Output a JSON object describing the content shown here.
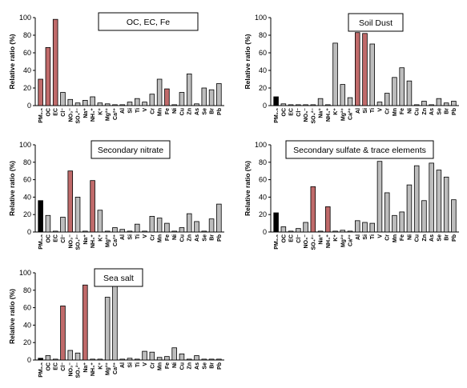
{
  "chart_data": [
    {
      "type": "bar",
      "title": "OC, EC, Fe",
      "ylabel": "Relative ratio (%)",
      "ylim": [
        0,
        100
      ],
      "yticks": [
        0,
        20,
        40,
        60,
        80,
        100
      ],
      "grid": false,
      "categories": [
        "PM₂.₅",
        "OC",
        "EC",
        "Cl⁻",
        "NO₃⁻",
        "SO₄²⁻",
        "Na⁺",
        "NH₄⁺",
        "K⁺",
        "Mg²⁺",
        "Ca²⁺",
        "Al",
        "Si",
        "Ti",
        "V",
        "Cr",
        "Mn",
        "Fe",
        "Ni",
        "Cu",
        "Zn",
        "As",
        "Se",
        "Br",
        "Pb"
      ],
      "values": [
        30,
        66,
        98,
        15,
        7,
        3,
        6,
        10,
        3,
        2,
        1,
        1,
        4,
        8,
        4,
        13,
        30,
        19,
        1,
        15,
        36,
        2,
        20,
        18,
        25
      ],
      "highlight": [
        2,
        2,
        2,
        1,
        1,
        1,
        1,
        1,
        1,
        1,
        1,
        1,
        1,
        1,
        1,
        1,
        1,
        2,
        1,
        1,
        1,
        1,
        1,
        1,
        1
      ]
    },
    {
      "type": "bar",
      "title": "Soil Dust",
      "ylabel": "Relative ratio (%)",
      "ylim": [
        0,
        100
      ],
      "yticks": [
        0,
        20,
        40,
        60,
        80,
        100
      ],
      "grid": false,
      "categories": [
        "PM₂.₅",
        "OC",
        "EC",
        "Cl⁻",
        "NO₃⁻",
        "SO₄²⁻",
        "Na⁺",
        "NH₄⁺",
        "K⁺",
        "Mg²⁺",
        "Ca²⁺",
        "Al",
        "Si",
        "Ti",
        "V",
        "Cr",
        "Mn",
        "Fe",
        "Ni",
        "Cu",
        "Zn",
        "As",
        "Se",
        "Br",
        "Pb"
      ],
      "values": [
        10,
        2,
        1,
        1,
        1,
        1,
        8,
        1,
        71,
        24,
        9,
        83,
        82,
        70,
        4,
        14,
        32,
        43,
        28,
        1,
        5,
        1,
        8,
        3,
        5
      ],
      "highlight": [
        0,
        1,
        1,
        1,
        1,
        1,
        1,
        1,
        1,
        1,
        1,
        2,
        2,
        1,
        1,
        1,
        1,
        1,
        1,
        1,
        1,
        1,
        1,
        1,
        1
      ]
    },
    {
      "type": "bar",
      "title": "Secondary nitrate",
      "ylabel": "Relative ratio (%)",
      "ylim": [
        0,
        100
      ],
      "yticks": [
        0,
        20,
        40,
        60,
        80,
        100
      ],
      "grid": false,
      "categories": [
        "PM₂.₅",
        "OC",
        "EC",
        "Cl⁻",
        "NO₃⁻",
        "SO₄²⁻",
        "Na⁺",
        "NH₄⁺",
        "K⁺",
        "Mg²⁺",
        "Ca²⁺",
        "Al",
        "Si",
        "Ti",
        "V",
        "Cr",
        "Mn",
        "Fe",
        "Ni",
        "Cu",
        "Zn",
        "As",
        "Se",
        "Br",
        "Pb"
      ],
      "values": [
        36,
        19,
        1,
        17,
        70,
        40,
        1,
        59,
        25,
        1,
        5,
        3,
        1,
        9,
        1,
        18,
        16,
        10,
        1,
        5,
        21,
        12,
        1,
        15,
        32
      ],
      "highlight": [
        0,
        1,
        1,
        1,
        2,
        1,
        1,
        2,
        1,
        1,
        1,
        1,
        1,
        1,
        1,
        1,
        1,
        1,
        1,
        1,
        1,
        1,
        1,
        1,
        1
      ]
    },
    {
      "type": "bar",
      "title": "Secondary sulfate & trace elements",
      "ylabel": "Relative ratio (%)",
      "ylim": [
        0,
        100
      ],
      "yticks": [
        0,
        20,
        40,
        60,
        80,
        100
      ],
      "grid": false,
      "categories": [
        "PM₂.₅",
        "OC",
        "EC",
        "Cl⁻",
        "NO₃⁻",
        "SO₄²⁻",
        "Na⁺",
        "NH₄⁺",
        "K⁺",
        "Mg²⁺",
        "Ca²⁺",
        "Al",
        "Si",
        "Ti",
        "V",
        "Cr",
        "Mn",
        "Fe",
        "Ni",
        "Cu",
        "Zn",
        "As",
        "Se",
        "Br",
        "Pb"
      ],
      "values": [
        22,
        6,
        1,
        4,
        11,
        52,
        1,
        29,
        1,
        2,
        1,
        13,
        11,
        10,
        81,
        45,
        19,
        23,
        54,
        76,
        36,
        79,
        71,
        63,
        37
      ],
      "highlight": [
        0,
        1,
        1,
        1,
        1,
        2,
        1,
        2,
        1,
        1,
        1,
        1,
        1,
        1,
        1,
        1,
        1,
        1,
        1,
        1,
        1,
        1,
        1,
        1,
        1
      ]
    },
    {
      "type": "bar",
      "title": "Sea salt",
      "ylabel": "Relative ratio (%)",
      "ylim": [
        0,
        100
      ],
      "yticks": [
        0,
        20,
        40,
        60,
        80,
        100
      ],
      "grid": false,
      "categories": [
        "PM₂.₅",
        "OC",
        "EC",
        "Cl⁻",
        "NO₃⁻",
        "SO₄²⁻",
        "Na⁺",
        "NH₄⁺",
        "K⁺",
        "Mg²⁺",
        "Ca²⁺",
        "Al",
        "Si",
        "Ti",
        "V",
        "Cr",
        "Mn",
        "Fe",
        "Ni",
        "Cu",
        "Zn",
        "As",
        "Se",
        "Br",
        "Pb"
      ],
      "values": [
        2,
        5,
        1,
        62,
        11,
        8,
        86,
        1,
        1,
        72,
        85,
        1,
        2,
        1,
        10,
        9,
        3,
        4,
        14,
        7,
        1,
        5,
        1,
        1,
        1
      ],
      "highlight": [
        0,
        1,
        1,
        2,
        1,
        1,
        2,
        1,
        1,
        1,
        1,
        1,
        1,
        1,
        1,
        1,
        1,
        1,
        1,
        1,
        1,
        1,
        1,
        1,
        1
      ]
    }
  ],
  "colors": {
    "pm": "#000000",
    "normal": "#bdbdbd",
    "highlight": "#c06a6a",
    "stroke": "#000000"
  }
}
